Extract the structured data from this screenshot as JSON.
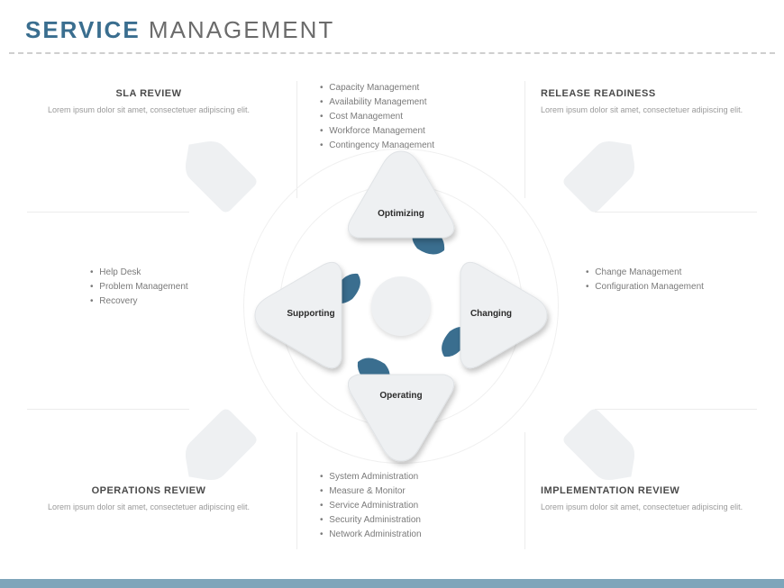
{
  "colors": {
    "accent": "#3a6e8f",
    "accent_light": "#5c8aa6",
    "triangle_fill": "#eef0f2",
    "triangle_stroke": "#e0e3e6",
    "grey_arrow": "#eef0f2",
    "title_bold": "#3a6e8f",
    "title_light": "#6b6b6b",
    "text_body": "#9a9a9a",
    "text_heading": "#4a4a4a",
    "shadow": "rgba(0,0,0,0.18)",
    "footer": "#7ea5ba"
  },
  "title": {
    "bold": "SERVICE",
    "light": " MANAGEMENT"
  },
  "corners": {
    "tl": {
      "heading": "SLA REVIEW",
      "desc": "Lorem ipsum dolor sit amet, consectetuer adipiscing elit."
    },
    "tr": {
      "heading": "RELEASE READINESS",
      "desc": "Lorem ipsum dolor sit amet, consectetuer adipiscing elit."
    },
    "bl": {
      "heading": "OPERATIONS REVIEW",
      "desc": "Lorem ipsum dolor sit amet, consectetuer adipiscing elit."
    },
    "br": {
      "heading": "IMPLEMENTATION REVIEW",
      "desc": "Lorem ipsum dolor sit amet, consectetuer adipiscing elit."
    }
  },
  "bullets": {
    "top": [
      "Capacity Management",
      "Availability Management",
      "Cost Management",
      "Workforce Management",
      "Contingency Management"
    ],
    "left": [
      "Help Desk",
      "Problem Management",
      "Recovery"
    ],
    "right": [
      "Change Management",
      "Configuration Management"
    ],
    "bottom": [
      "System Administration",
      "Measure & Monitor",
      "Service Administration",
      "Security Administration",
      "Network Administration"
    ]
  },
  "petals": {
    "top": "Optimizing",
    "right": "Changing",
    "bottom": "Operating",
    "left": "Supporting"
  },
  "diagram": {
    "type": "infographic",
    "layout": "4-petal rounded-triangle cycle with center circle and 4 diagonal outer arrows",
    "triangle_corner_radius": 22,
    "accent_shape": "teardrop under one corner of each triangle, color accent",
    "outer_arrow_shape": "rounded pentagon pointer",
    "ring_count": 2
  }
}
